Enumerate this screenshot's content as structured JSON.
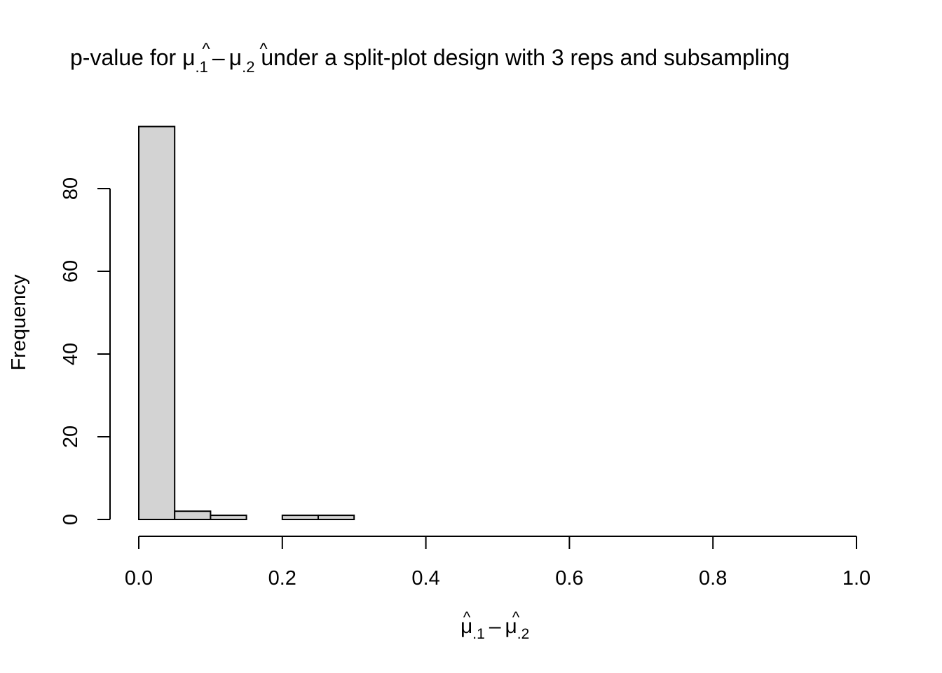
{
  "chart_data": {
    "type": "bar",
    "title": {
      "prefix": "p-value for ",
      "suffix": " under a split-plot design with 3 reps and subsampling"
    },
    "formula": {
      "symbol": "μ",
      "hat": "^",
      "sub1": ".1",
      "sub2": ".2",
      "minus": "–"
    },
    "ylabel": "Frequency",
    "bins": [
      {
        "start": 0.0,
        "end": 0.05,
        "count": 95
      },
      {
        "start": 0.05,
        "end": 0.1,
        "count": 2
      },
      {
        "start": 0.1,
        "end": 0.15,
        "count": 1
      },
      {
        "start": 0.15,
        "end": 0.2,
        "count": 0
      },
      {
        "start": 0.2,
        "end": 0.25,
        "count": 1
      },
      {
        "start": 0.25,
        "end": 0.3,
        "count": 1
      }
    ],
    "xlim": [
      0,
      1
    ],
    "ylim": [
      0,
      95
    ],
    "x_ticks": [
      0.0,
      0.2,
      0.4,
      0.6,
      0.8,
      1.0
    ],
    "x_tick_labels": [
      "0.0",
      "0.2",
      "0.4",
      "0.6",
      "0.8",
      "1.0"
    ],
    "y_ticks": [
      0,
      20,
      40,
      60,
      80
    ],
    "y_tick_labels": [
      "0",
      "20",
      "40",
      "60",
      "80"
    ],
    "bar_fill": "#d3d3d3",
    "bar_stroke": "#000000",
    "grid": false,
    "legend": "none"
  }
}
